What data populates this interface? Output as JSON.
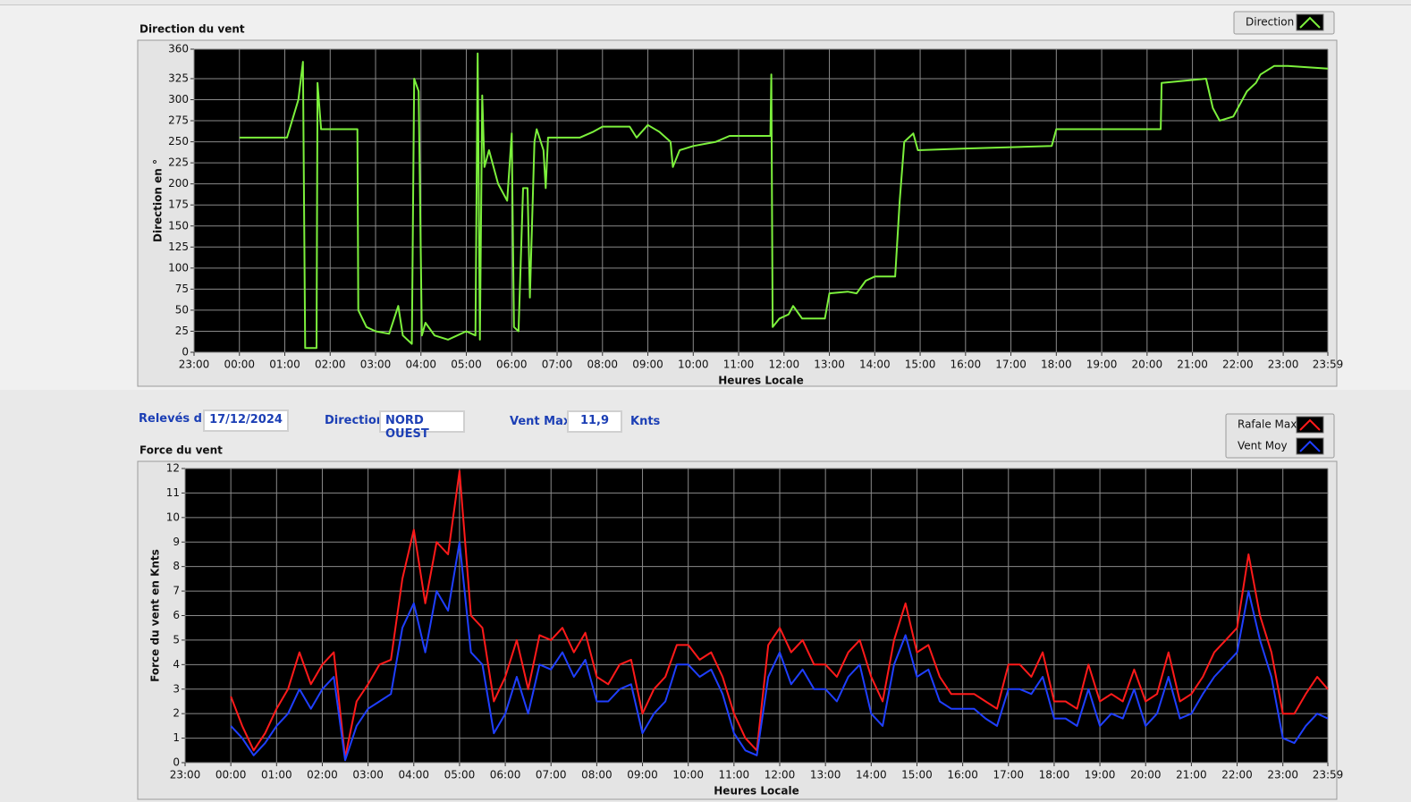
{
  "chart_data": [
    {
      "type": "line",
      "title": "Direction du vent",
      "y_label": "Direction en °",
      "x_label": "Heures Locale",
      "grid": true,
      "xlim": [
        -1,
        23.9833
      ],
      "ylim": [
        0,
        360
      ],
      "xticks": [
        {
          "value": -1,
          "label": "23:00"
        },
        {
          "value": 0,
          "label": "00:00"
        },
        {
          "value": 1,
          "label": "01:00"
        },
        {
          "value": 2,
          "label": "02:00"
        },
        {
          "value": 3,
          "label": "03:00"
        },
        {
          "value": 4,
          "label": "04:00"
        },
        {
          "value": 5,
          "label": "05:00"
        },
        {
          "value": 6,
          "label": "06:00"
        },
        {
          "value": 7,
          "label": "07:00"
        },
        {
          "value": 8,
          "label": "08:00"
        },
        {
          "value": 9,
          "label": "09:00"
        },
        {
          "value": 10,
          "label": "10:00"
        },
        {
          "value": 11,
          "label": "11:00"
        },
        {
          "value": 12,
          "label": "12:00"
        },
        {
          "value": 13,
          "label": "13:00"
        },
        {
          "value": 14,
          "label": "14:00"
        },
        {
          "value": 15,
          "label": "15:00"
        },
        {
          "value": 16,
          "label": "16:00"
        },
        {
          "value": 17,
          "label": "17:00"
        },
        {
          "value": 18,
          "label": "18:00"
        },
        {
          "value": 19,
          "label": "19:00"
        },
        {
          "value": 20,
          "label": "20:00"
        },
        {
          "value": 21,
          "label": "21:00"
        },
        {
          "value": 22,
          "label": "22:00"
        },
        {
          "value": 23,
          "label": "23:00"
        },
        {
          "value": 23.9833,
          "label": "23:59"
        }
      ],
      "yticks": [
        0,
        25,
        50,
        75,
        100,
        125,
        150,
        175,
        200,
        225,
        250,
        275,
        300,
        325,
        360
      ],
      "x": [
        0,
        1.05,
        1.3,
        1.4,
        1.45,
        1.7,
        1.72,
        1.8,
        2.6,
        2.62,
        2.8,
        3,
        3.3,
        3.5,
        3.6,
        3.8,
        3.85,
        3.95,
        4.02,
        4.1,
        4.3,
        4.6,
        5,
        5.2,
        5.25,
        5.3,
        5.35,
        5.4,
        5.5,
        5.7,
        5.9,
        6,
        6.05,
        6.15,
        6.25,
        6.35,
        6.4,
        6.5,
        6.55,
        6.7,
        6.75,
        6.8,
        7.5,
        7.8,
        8,
        8.6,
        8.75,
        9,
        9.25,
        9.5,
        9.55,
        9.7,
        10,
        10.5,
        10.8,
        11.7,
        11.72,
        11.75,
        11.9,
        12.1,
        12.2,
        12.4,
        12.9,
        13,
        13.4,
        13.6,
        13.8,
        14,
        14.45,
        14.55,
        14.65,
        14.85,
        14.95,
        16,
        17.9,
        18,
        20.3,
        20.32,
        21.3,
        21.45,
        21.6,
        21.9,
        22.2,
        22.4,
        22.5,
        22.8,
        23.1,
        23.9833
      ],
      "series": [
        {
          "name": "Direction",
          "color": "#7cf03c",
          "values": [
            255,
            255,
            300,
            345,
            5,
            5,
            320,
            265,
            265,
            50,
            30,
            25,
            22,
            55,
            20,
            10,
            325,
            310,
            20,
            35,
            20,
            15,
            25,
            20,
            355,
            15,
            305,
            220,
            240,
            200,
            180,
            260,
            30,
            25,
            195,
            195,
            65,
            250,
            265,
            240,
            195,
            255,
            255,
            262,
            268,
            268,
            255,
            270,
            262,
            250,
            220,
            240,
            245,
            250,
            257,
            257,
            330,
            30,
            40,
            45,
            55,
            40,
            40,
            70,
            72,
            70,
            85,
            90,
            90,
            180,
            250,
            260,
            240,
            242,
            245,
            265,
            265,
            320,
            325,
            290,
            275,
            280,
            310,
            320,
            330,
            340,
            340,
            337
          ]
        }
      ]
    },
    {
      "type": "line",
      "title": "Force du vent",
      "y_label": "Force du vent en Knts",
      "x_label": "Heures Locale",
      "grid": true,
      "xlim": [
        -1,
        23.9833
      ],
      "ylim": [
        0,
        12
      ],
      "xticks": [
        {
          "value": -1,
          "label": "23:00"
        },
        {
          "value": 0,
          "label": "00:00"
        },
        {
          "value": 1,
          "label": "01:00"
        },
        {
          "value": 2,
          "label": "02:00"
        },
        {
          "value": 3,
          "label": "03:00"
        },
        {
          "value": 4,
          "label": "04:00"
        },
        {
          "value": 5,
          "label": "05:00"
        },
        {
          "value": 6,
          "label": "06:00"
        },
        {
          "value": 7,
          "label": "07:00"
        },
        {
          "value": 8,
          "label": "08:00"
        },
        {
          "value": 9,
          "label": "09:00"
        },
        {
          "value": 10,
          "label": "10:00"
        },
        {
          "value": 11,
          "label": "11:00"
        },
        {
          "value": 12,
          "label": "12:00"
        },
        {
          "value": 13,
          "label": "13:00"
        },
        {
          "value": 14,
          "label": "14:00"
        },
        {
          "value": 15,
          "label": "15:00"
        },
        {
          "value": 16,
          "label": "16:00"
        },
        {
          "value": 17,
          "label": "17:00"
        },
        {
          "value": 18,
          "label": "18:00"
        },
        {
          "value": 19,
          "label": "19:00"
        },
        {
          "value": 20,
          "label": "20:00"
        },
        {
          "value": 21,
          "label": "21:00"
        },
        {
          "value": 22,
          "label": "22:00"
        },
        {
          "value": 23,
          "label": "23:00"
        },
        {
          "value": 23.9833,
          "label": "23:59"
        }
      ],
      "yticks": [
        0,
        1,
        2,
        3,
        4,
        5,
        6,
        7,
        8,
        9,
        10,
        11,
        12
      ],
      "x": [
        0,
        0.25,
        0.5,
        0.75,
        1,
        1.25,
        1.5,
        1.75,
        2,
        2.25,
        2.5,
        2.75,
        3,
        3.25,
        3.5,
        3.75,
        4,
        4.25,
        4.5,
        4.75,
        5,
        5.25,
        5.5,
        5.75,
        6,
        6.25,
        6.5,
        6.75,
        7,
        7.25,
        7.5,
        7.75,
        8,
        8.25,
        8.5,
        8.75,
        9,
        9.25,
        9.5,
        9.75,
        10,
        10.25,
        10.5,
        10.75,
        11,
        11.25,
        11.5,
        11.75,
        12,
        12.25,
        12.5,
        12.75,
        13,
        13.25,
        13.5,
        13.75,
        14,
        14.25,
        14.5,
        14.75,
        15,
        15.25,
        15.5,
        15.75,
        16,
        16.25,
        16.5,
        16.75,
        17,
        17.25,
        17.5,
        17.75,
        18,
        18.25,
        18.5,
        18.75,
        19,
        19.25,
        19.5,
        19.75,
        20,
        20.25,
        20.5,
        20.75,
        21,
        21.25,
        21.5,
        21.75,
        22,
        22.25,
        22.5,
        22.75,
        23,
        23.25,
        23.5,
        23.75,
        23.9833
      ],
      "series": [
        {
          "name": "Rafale Max",
          "color": "#ff1a1a",
          "values": [
            2.7,
            1.5,
            0.5,
            1.2,
            2.2,
            3,
            4.5,
            3.2,
            4,
            4.5,
            0.2,
            2.5,
            3.2,
            4,
            4.2,
            7.5,
            9.5,
            6.5,
            9,
            8.5,
            11.9,
            6,
            5.5,
            2.5,
            3.5,
            5,
            3,
            5.2,
            5,
            5.5,
            4.5,
            5.3,
            3.5,
            3.2,
            4,
            4.2,
            2,
            3,
            3.5,
            4.8,
            4.8,
            4.2,
            4.5,
            3.5,
            2,
            1,
            0.5,
            4.8,
            5.5,
            4.5,
            5,
            4,
            4,
            3.5,
            4.5,
            5,
            3.5,
            2.5,
            5,
            6.5,
            4.5,
            4.8,
            3.5,
            2.8,
            2.8,
            2.8,
            2.5,
            2.2,
            4,
            4,
            3.5,
            4.5,
            2.5,
            2.5,
            2.2,
            4,
            2.5,
            2.8,
            2.5,
            3.8,
            2.5,
            2.8,
            4.5,
            2.5,
            2.8,
            3.5,
            4.5,
            5,
            5.5,
            8.5,
            6,
            4.5,
            2,
            2,
            2.8,
            3.5,
            3
          ]
        },
        {
          "name": "Vent Moy",
          "color": "#1f3fff",
          "values": [
            1.5,
            1,
            0.3,
            0.8,
            1.5,
            2,
            3,
            2.2,
            3,
            3.5,
            0.1,
            1.5,
            2.2,
            2.5,
            2.8,
            5.5,
            6.5,
            4.5,
            7,
            6.2,
            9,
            4.5,
            4,
            1.2,
            2,
            3.5,
            2,
            4,
            3.8,
            4.5,
            3.5,
            4.2,
            2.5,
            2.5,
            3,
            3.2,
            1.2,
            2,
            2.5,
            4,
            4,
            3.5,
            3.8,
            2.8,
            1.2,
            0.5,
            0.3,
            3.5,
            4.5,
            3.2,
            3.8,
            3,
            3,
            2.5,
            3.5,
            4,
            2,
            1.5,
            4,
            5.2,
            3.5,
            3.8,
            2.5,
            2.2,
            2.2,
            2.2,
            1.8,
            1.5,
            3,
            3,
            2.8,
            3.5,
            1.8,
            1.8,
            1.5,
            3,
            1.5,
            2,
            1.8,
            3,
            1.5,
            2,
            3.5,
            1.8,
            2,
            2.8,
            3.5,
            4,
            4.5,
            7,
            5,
            3.5,
            1,
            0.8,
            1.5,
            2,
            1.8
          ]
        }
      ]
    }
  ],
  "readings": {
    "date_label": "Relevés du",
    "date": "17/12/2024",
    "direction_label": "Direction",
    "direction": "NORD OUEST",
    "max_label": "Vent Max",
    "max": "11,9",
    "unit": "Knts"
  }
}
